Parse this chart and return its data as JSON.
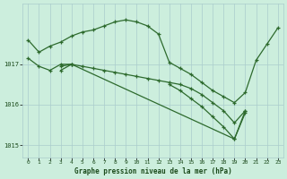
{
  "title": "Graphe pression niveau de la mer (hPa)",
  "background_color": "#cceedd",
  "line_color": "#2d6a2d",
  "grid_color": "#aacccc",
  "tick_color": "#1a4a1a",
  "series": [
    {
      "x": [
        0,
        1,
        2,
        3,
        4,
        5,
        6,
        7,
        8,
        9,
        10,
        11,
        12,
        13,
        14,
        15,
        16,
        17,
        18,
        19,
        20,
        21,
        22,
        23
      ],
      "y": [
        1017.6,
        1017.3,
        1017.45,
        1017.55,
        1017.7,
        1017.8,
        1017.85,
        1017.95,
        1018.05,
        1018.1,
        1018.05,
        1017.95,
        1017.75,
        1017.05,
        1016.9,
        1016.75,
        1016.55,
        1016.35,
        1016.2,
        1016.05,
        1016.3,
        1017.1,
        1017.5,
        1017.9
      ]
    },
    {
      "x": [
        0,
        1,
        2,
        3,
        4,
        13,
        14,
        15,
        16,
        17,
        18,
        19,
        20
      ],
      "y": [
        1017.15,
        1016.95,
        1016.85,
        1017.0,
        1017.0,
        1016.5,
        1016.35,
        1016.15,
        1015.95,
        1015.7,
        1015.45,
        1015.15,
        1015.8
      ]
    },
    {
      "x": [
        3,
        4,
        5,
        6,
        7,
        8,
        9,
        10,
        11,
        12,
        13,
        14,
        15,
        16,
        17,
        18,
        19,
        20
      ],
      "y": [
        1016.95,
        1017.0,
        1016.95,
        1016.9,
        1016.85,
        1016.8,
        1016.75,
        1016.7,
        1016.65,
        1016.6,
        1016.55,
        1016.5,
        1016.4,
        1016.25,
        1016.05,
        1015.85,
        1015.55,
        1015.85
      ]
    },
    {
      "x": [
        3,
        4,
        19,
        20
      ],
      "y": [
        1016.85,
        1017.0,
        1015.15,
        1015.85
      ]
    }
  ],
  "ylim": [
    1014.7,
    1018.5
  ],
  "yticks": [
    1015,
    1016,
    1017
  ],
  "xlim": [
    -0.5,
    23.5
  ],
  "xticks": [
    0,
    1,
    2,
    3,
    4,
    5,
    6,
    7,
    8,
    9,
    10,
    11,
    12,
    13,
    14,
    15,
    16,
    17,
    18,
    19,
    20,
    21,
    22,
    23
  ],
  "figsize": [
    3.2,
    2.0
  ],
  "dpi": 100
}
